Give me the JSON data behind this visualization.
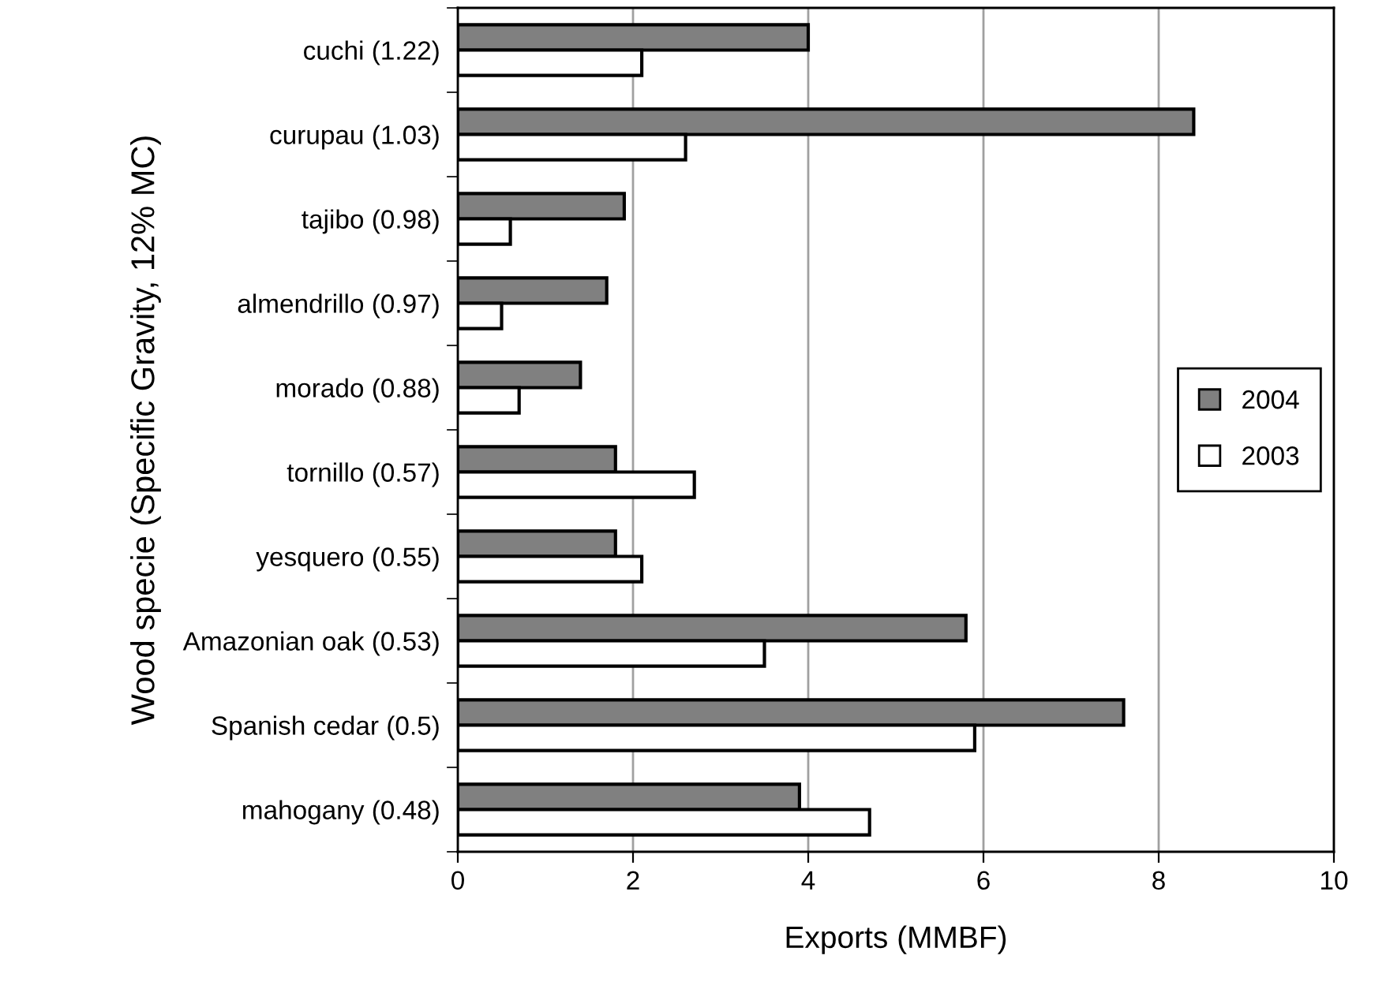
{
  "chart_data": {
    "type": "bar",
    "orientation": "horizontal",
    "xlabel": "Exports (MMBF)",
    "ylabel": "Wood specie (Specific Gravity, 12% MC)",
    "categories": [
      "cuchi (1.22)",
      "curupau (1.03)",
      "tajibo (0.98)",
      "almendrillo (0.97)",
      "morado (0.88)",
      "tornillo (0.57)",
      "yesquero (0.55)",
      "Amazonian oak (0.53)",
      "Spanish cedar (0.5)",
      "mahogany (0.48)"
    ],
    "series": [
      {
        "name": "2004",
        "color": "#808080",
        "values": [
          4.0,
          8.4,
          1.9,
          1.7,
          1.4,
          1.8,
          1.8,
          5.8,
          7.6,
          3.9
        ]
      },
      {
        "name": "2003",
        "color": "#ffffff",
        "values": [
          2.1,
          2.6,
          0.6,
          0.5,
          0.7,
          2.7,
          2.1,
          3.5,
          5.9,
          4.7
        ]
      }
    ],
    "xlim": [
      0,
      10
    ],
    "xticks": [
      0,
      2,
      4,
      6,
      8,
      10
    ],
    "grid": "x",
    "legend": "right"
  }
}
